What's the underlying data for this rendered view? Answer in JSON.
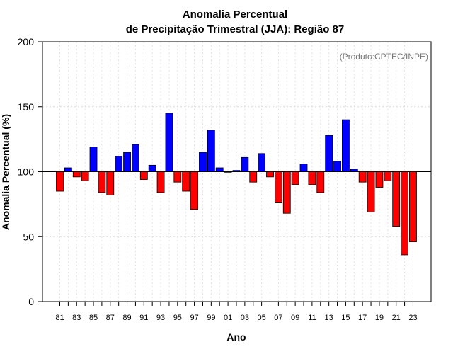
{
  "chart_data": {
    "type": "bar",
    "title": "Anomalia Percentual",
    "subtitle": "de Precipitação Trimestral (JJA): Região 87",
    "xlabel": "Ano",
    "ylabel": "Anomalia Percentual (%)",
    "credit": "(Produto:CPTEC/INPE)",
    "ylim": [
      0,
      200
    ],
    "yticks": [
      0,
      50,
      100,
      150,
      200
    ],
    "baseline": 100,
    "grid": true,
    "categories": [
      "81",
      "82",
      "83",
      "84",
      "85",
      "86",
      "87",
      "88",
      "89",
      "90",
      "91",
      "92",
      "93",
      "94",
      "95",
      "96",
      "97",
      "98",
      "99",
      "00",
      "01",
      "02",
      "03",
      "04",
      "05",
      "06",
      "07",
      "08",
      "09",
      "10",
      "11",
      "12",
      "13",
      "14",
      "15",
      "16",
      "17",
      "18",
      "19",
      "20",
      "21",
      "22",
      "23"
    ],
    "tick_labels": [
      "81",
      "83",
      "85",
      "87",
      "89",
      "91",
      "93",
      "95",
      "97",
      "99",
      "01",
      "03",
      "05",
      "07",
      "09",
      "11",
      "13",
      "15",
      "17",
      "19",
      "21",
      "23"
    ],
    "values": [
      85,
      103,
      96,
      93,
      119,
      84,
      82,
      112,
      115,
      121,
      94,
      105,
      84,
      145,
      92,
      85,
      71,
      115,
      132,
      103,
      100,
      101,
      111,
      92,
      114,
      96,
      76,
      68,
      90,
      106,
      90,
      84,
      128,
      108,
      140,
      102,
      92,
      69,
      88,
      93,
      58,
      36,
      46
    ],
    "colors": {
      "above": "#0000ff",
      "below": "#ff0000"
    }
  }
}
